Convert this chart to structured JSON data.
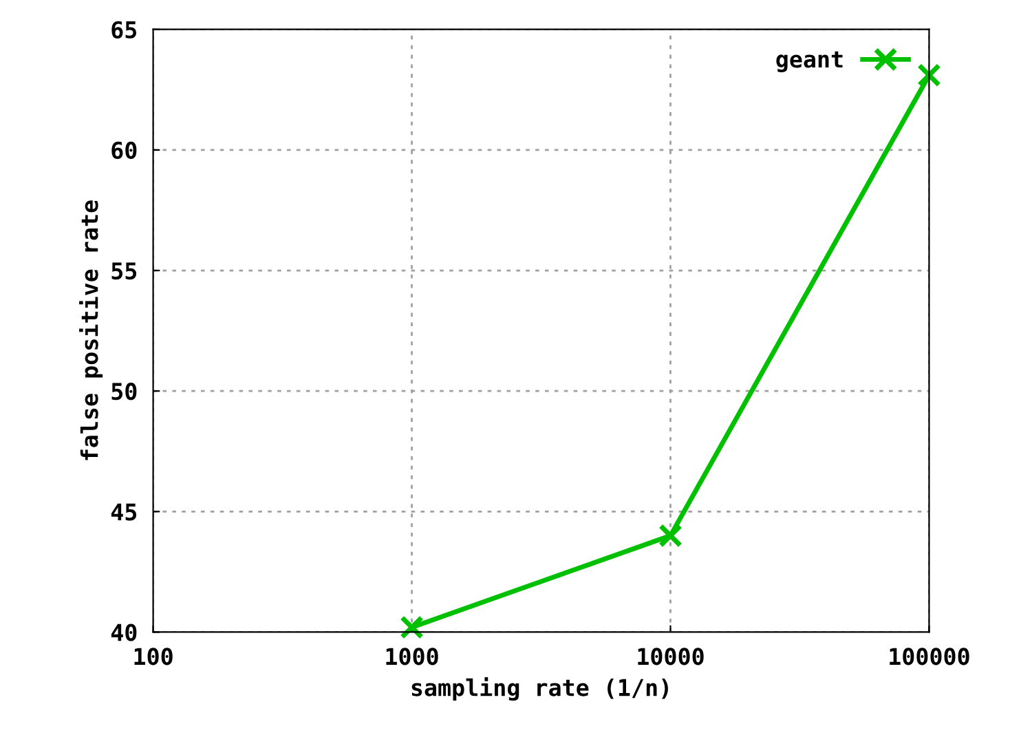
{
  "chart_data": {
    "type": "line",
    "xlabel": "sampling rate (1/n)",
    "ylabel": "false positive rate",
    "x": [
      1000,
      10000,
      100000
    ],
    "series": [
      {
        "name": "geant",
        "color": "#00c000",
        "values": [
          40.2,
          44.0,
          63.1
        ]
      }
    ],
    "log": "x",
    "xlim": [
      100,
      100000
    ],
    "xticks": [
      100,
      1000,
      10000,
      100000
    ],
    "ylim": [
      40,
      65
    ],
    "yticks": [
      40,
      45,
      50,
      55,
      60,
      65
    ],
    "grid": true,
    "legend": "top right",
    "marker": "cross",
    "line_style": "solid"
  }
}
